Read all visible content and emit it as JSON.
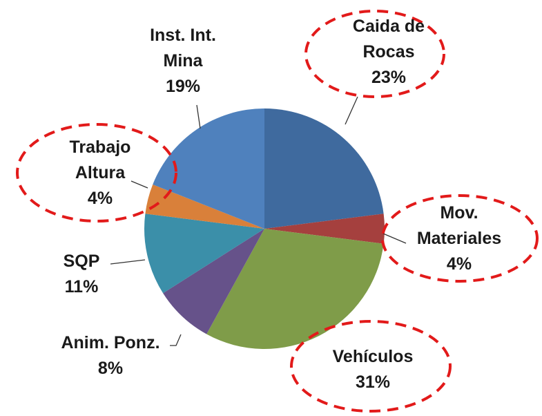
{
  "chart_data": {
    "type": "pie",
    "categories": [
      "Caida de Rocas",
      "Mov. Materiales",
      "Vehículos",
      "Anim. Ponz.",
      "SQP",
      "Trabajo Altura",
      "Inst. Int. Mina"
    ],
    "values": [
      23,
      4,
      31,
      8,
      11,
      4,
      19
    ],
    "value_labels": [
      "23%",
      "4%",
      "31%",
      "8%",
      "11%",
      "4%",
      "19%"
    ],
    "colors": [
      "#3f6a9e",
      "#a5403e",
      "#7f9c49",
      "#66528a",
      "#3b8fa9",
      "#d9803a",
      "#4f81bd"
    ]
  }
}
